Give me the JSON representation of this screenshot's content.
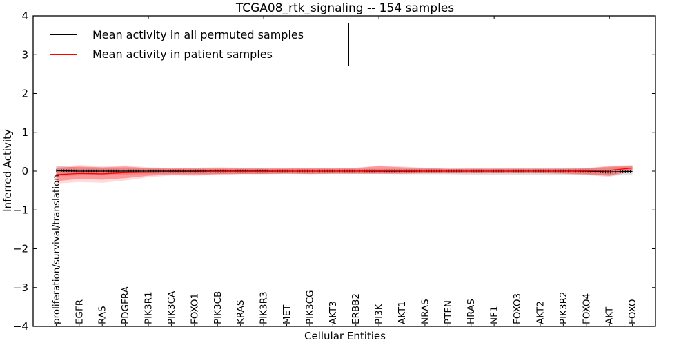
{
  "figure": {
    "title": "TCGA08_rtk_signaling -- 154 samples",
    "xlabel": "Cellular Entities",
    "ylabel": "Inferred Activity"
  },
  "chart_data": {
    "type": "line",
    "title": "TCGA08_rtk_signaling -- 154 samples",
    "xlabel": "Cellular Entities",
    "ylabel": "Inferred Activity",
    "ylim": [
      -4,
      4
    ],
    "xlim": [
      0,
      27
    ],
    "yticks": [
      4,
      3,
      2,
      1,
      0,
      -1,
      -2,
      -3,
      -4
    ],
    "ytick_labels": [
      "4",
      "3",
      "2",
      "1",
      "0",
      "−1",
      "−2",
      "−3",
      "−4"
    ],
    "top_xticks": [
      5,
      10,
      15,
      20,
      25
    ],
    "grid": false,
    "legend_position": "upper left",
    "categories": [
      "proliferation/survival/translation",
      "EGFR",
      "RAS",
      "PDGFRA",
      "PIK3R1",
      "PIK3CA",
      "FOXO1",
      "PIK3CB",
      "KRAS",
      "PIK3R3",
      "MET",
      "PIK3CG",
      "AKT3",
      "ERBB2",
      "PI3K",
      "AKT1",
      "NRAS",
      "PTEN",
      "HRAS",
      "NF1",
      "FOXO3",
      "AKT2",
      "PIK3R2",
      "FOXO4",
      "AKT",
      "FOXO"
    ],
    "series": [
      {
        "name": "Mean activity in all permuted samples",
        "color": "#000000",
        "marker": "|",
        "values": [
          0.01,
          0.0,
          0.0,
          0.0,
          0.0,
          0.0,
          0.0,
          0.0,
          0.0,
          0.0,
          0.0,
          0.0,
          0.0,
          0.0,
          0.0,
          0.0,
          0.0,
          0.0,
          0.0,
          0.0,
          0.0,
          0.0,
          0.0,
          0.0,
          -0.02,
          -0.01
        ]
      },
      {
        "name": "Mean activity in patient samples",
        "color": "#ff0000",
        "marker": null,
        "values": [
          -0.09,
          -0.06,
          -0.07,
          -0.04,
          -0.03,
          -0.02,
          -0.02,
          -0.01,
          -0.01,
          -0.01,
          0.0,
          0.0,
          0.0,
          0.0,
          0.01,
          0.01,
          0.0,
          0.0,
          0.0,
          0.0,
          0.0,
          0.0,
          0.0,
          0.01,
          0.02,
          0.08
        ]
      }
    ],
    "bands": [
      {
        "name": "permuted-samples-range",
        "color": "#000000",
        "opacity": 0.12,
        "upper": [
          0.13,
          0.1,
          0.09,
          0.08,
          0.07,
          0.06,
          0.06,
          0.06,
          0.06,
          0.06,
          0.06,
          0.06,
          0.06,
          0.06,
          0.06,
          0.06,
          0.06,
          0.06,
          0.07,
          0.07,
          0.08,
          0.08,
          0.08,
          0.09,
          0.1,
          0.12
        ],
        "lower": [
          -0.13,
          -0.11,
          -0.1,
          -0.09,
          -0.08,
          -0.07,
          -0.07,
          -0.07,
          -0.07,
          -0.07,
          -0.07,
          -0.07,
          -0.07,
          -0.07,
          -0.07,
          -0.08,
          -0.08,
          -0.08,
          -0.09,
          -0.09,
          -0.09,
          -0.09,
          -0.1,
          -0.1,
          -0.12,
          -0.1
        ]
      },
      {
        "name": "patient-samples-range-outer",
        "color": "#ff0000",
        "opacity": 0.14,
        "upper": [
          0.12,
          0.16,
          0.12,
          0.15,
          0.1,
          0.08,
          0.09,
          0.1,
          0.09,
          0.08,
          0.08,
          0.09,
          0.08,
          0.09,
          0.15,
          0.12,
          0.09,
          0.07,
          0.07,
          0.07,
          0.07,
          0.07,
          0.07,
          0.08,
          0.14,
          0.16
        ],
        "lower": [
          -0.32,
          -0.28,
          -0.3,
          -0.24,
          -0.16,
          -0.11,
          -0.12,
          -0.1,
          -0.08,
          -0.08,
          -0.07,
          -0.08,
          -0.07,
          -0.07,
          -0.07,
          -0.07,
          -0.06,
          -0.06,
          -0.06,
          -0.06,
          -0.06,
          -0.06,
          -0.07,
          -0.1,
          -0.15,
          0.0
        ]
      },
      {
        "name": "patient-samples-range",
        "color": "#ff0000",
        "opacity": 0.3,
        "upper": [
          0.09,
          0.12,
          0.1,
          0.12,
          0.08,
          0.07,
          0.08,
          0.09,
          0.08,
          0.07,
          0.07,
          0.08,
          0.07,
          0.08,
          0.13,
          0.1,
          0.08,
          0.06,
          0.06,
          0.06,
          0.06,
          0.06,
          0.06,
          0.07,
          0.12,
          0.14
        ],
        "lower": [
          -0.26,
          -0.2,
          -0.22,
          -0.18,
          -0.12,
          -0.09,
          -0.1,
          -0.08,
          -0.07,
          -0.07,
          -0.06,
          -0.07,
          -0.06,
          -0.06,
          -0.06,
          -0.06,
          -0.05,
          -0.05,
          -0.05,
          -0.05,
          -0.05,
          -0.05,
          -0.06,
          -0.08,
          -0.12,
          0.02
        ]
      }
    ]
  }
}
